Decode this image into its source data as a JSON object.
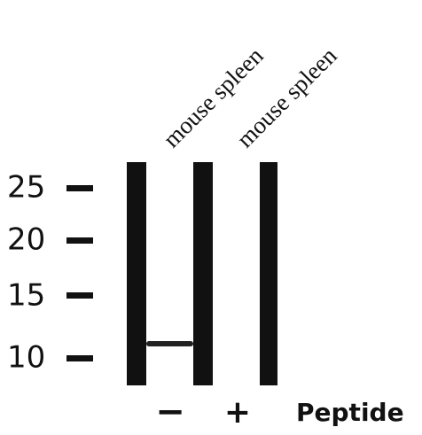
{
  "markers": [
    "25",
    "20",
    "15",
    "10"
  ],
  "lanes": [
    {
      "label": "mouse spleen",
      "peptide": "−"
    },
    {
      "label": "mouse spleen",
      "peptide": "+"
    }
  ],
  "peptide_label": "Peptide"
}
